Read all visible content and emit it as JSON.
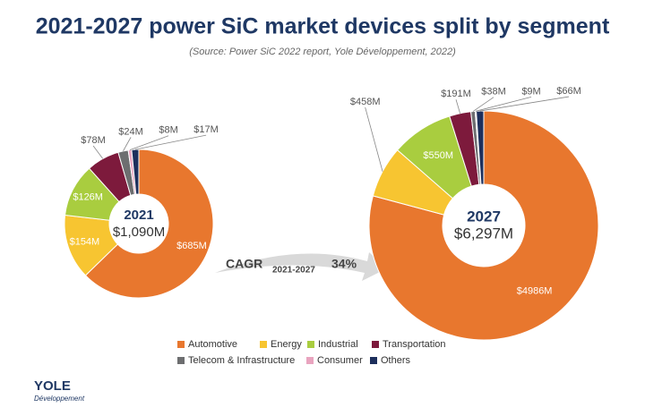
{
  "title": "2021-2027 power SiC market devices split by segment",
  "subtitle": "(Source: Power SiC 2022 report, Yole Développement, 2022)",
  "cagr": {
    "label": "CAGR",
    "period": "2021-2027",
    "value": "34%"
  },
  "logo": {
    "name": "YOLE",
    "tagline": "Développement"
  },
  "chart_data": [
    {
      "type": "pie",
      "center_title": "2021",
      "total": 1090,
      "total_label": "$1,090M",
      "categories": [
        "Automotive",
        "Energy",
        "Industrial",
        "Transportation",
        "Telecom & Infrastructure",
        "Consumer",
        "Others"
      ],
      "values": [
        685,
        154,
        126,
        78,
        24,
        8,
        17
      ],
      "value_labels": [
        "$685M",
        "$154M",
        "$126M",
        "$78M",
        "$24M",
        "$8M",
        "$17M"
      ],
      "colors": [
        "#e8772e",
        "#f7c531",
        "#a9cd3f",
        "#7d1a3c",
        "#6d6e70",
        "#e9a4bf",
        "#1d2f5c"
      ]
    },
    {
      "type": "pie",
      "center_title": "2027",
      "total": 6297,
      "total_label": "$6,297M",
      "categories": [
        "Automotive",
        "Energy",
        "Industrial",
        "Transportation",
        "Telecom & Infrastructure",
        "Consumer",
        "Others"
      ],
      "values": [
        4986,
        458,
        550,
        191,
        38,
        9,
        66
      ],
      "value_labels": [
        "$4986M",
        "$458M",
        "$550M",
        "$191M",
        "$38M",
        "$9M",
        "$66M"
      ],
      "colors": [
        "#e8772e",
        "#f7c531",
        "#a9cd3f",
        "#7d1a3c",
        "#6d6e70",
        "#e9a4bf",
        "#1d2f5c"
      ]
    }
  ]
}
